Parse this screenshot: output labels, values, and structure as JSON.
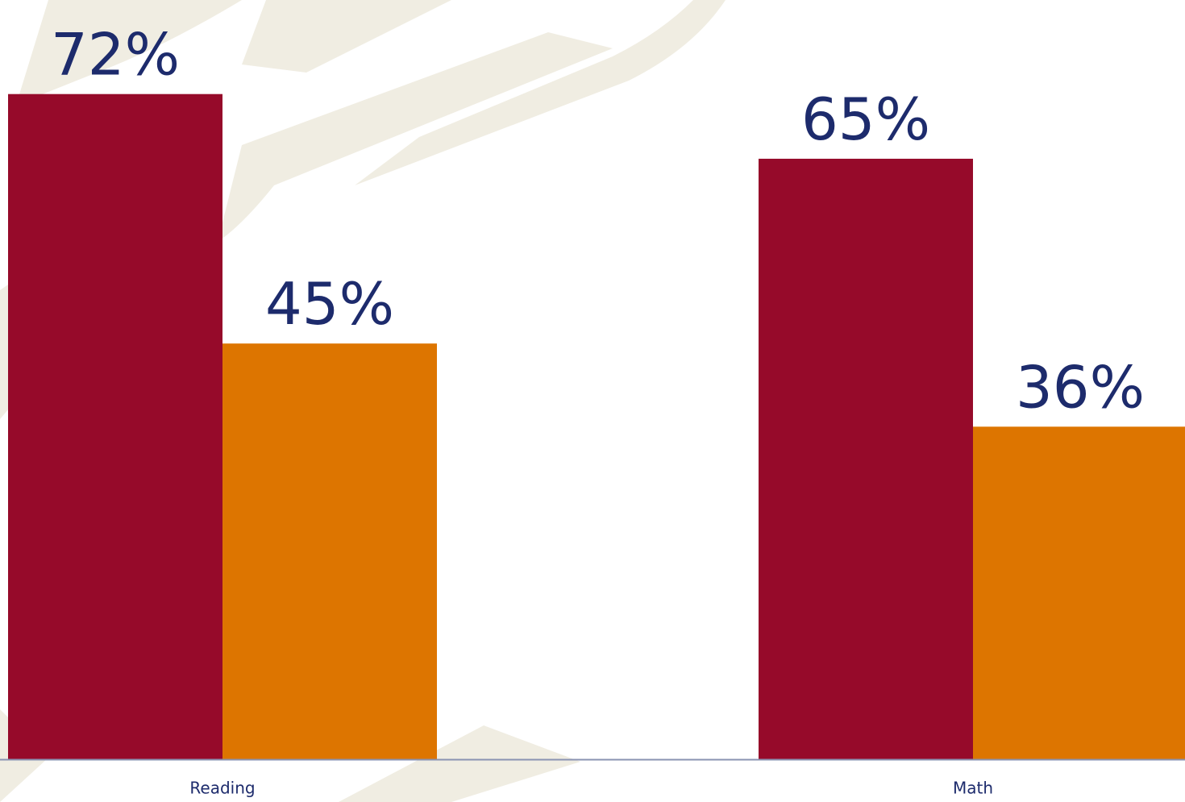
{
  "chart_data": {
    "type": "bar",
    "categories": [
      "Reading",
      "Math"
    ],
    "series": [
      {
        "color": "#960a2a",
        "values": [
          72,
          65
        ],
        "value_labels": [
          "72%",
          "65%"
        ]
      },
      {
        "color": "#dd7500",
        "values": [
          45,
          36
        ],
        "value_labels": [
          "45%",
          "36%"
        ]
      }
    ],
    "ylim": [
      0,
      80
    ]
  }
}
